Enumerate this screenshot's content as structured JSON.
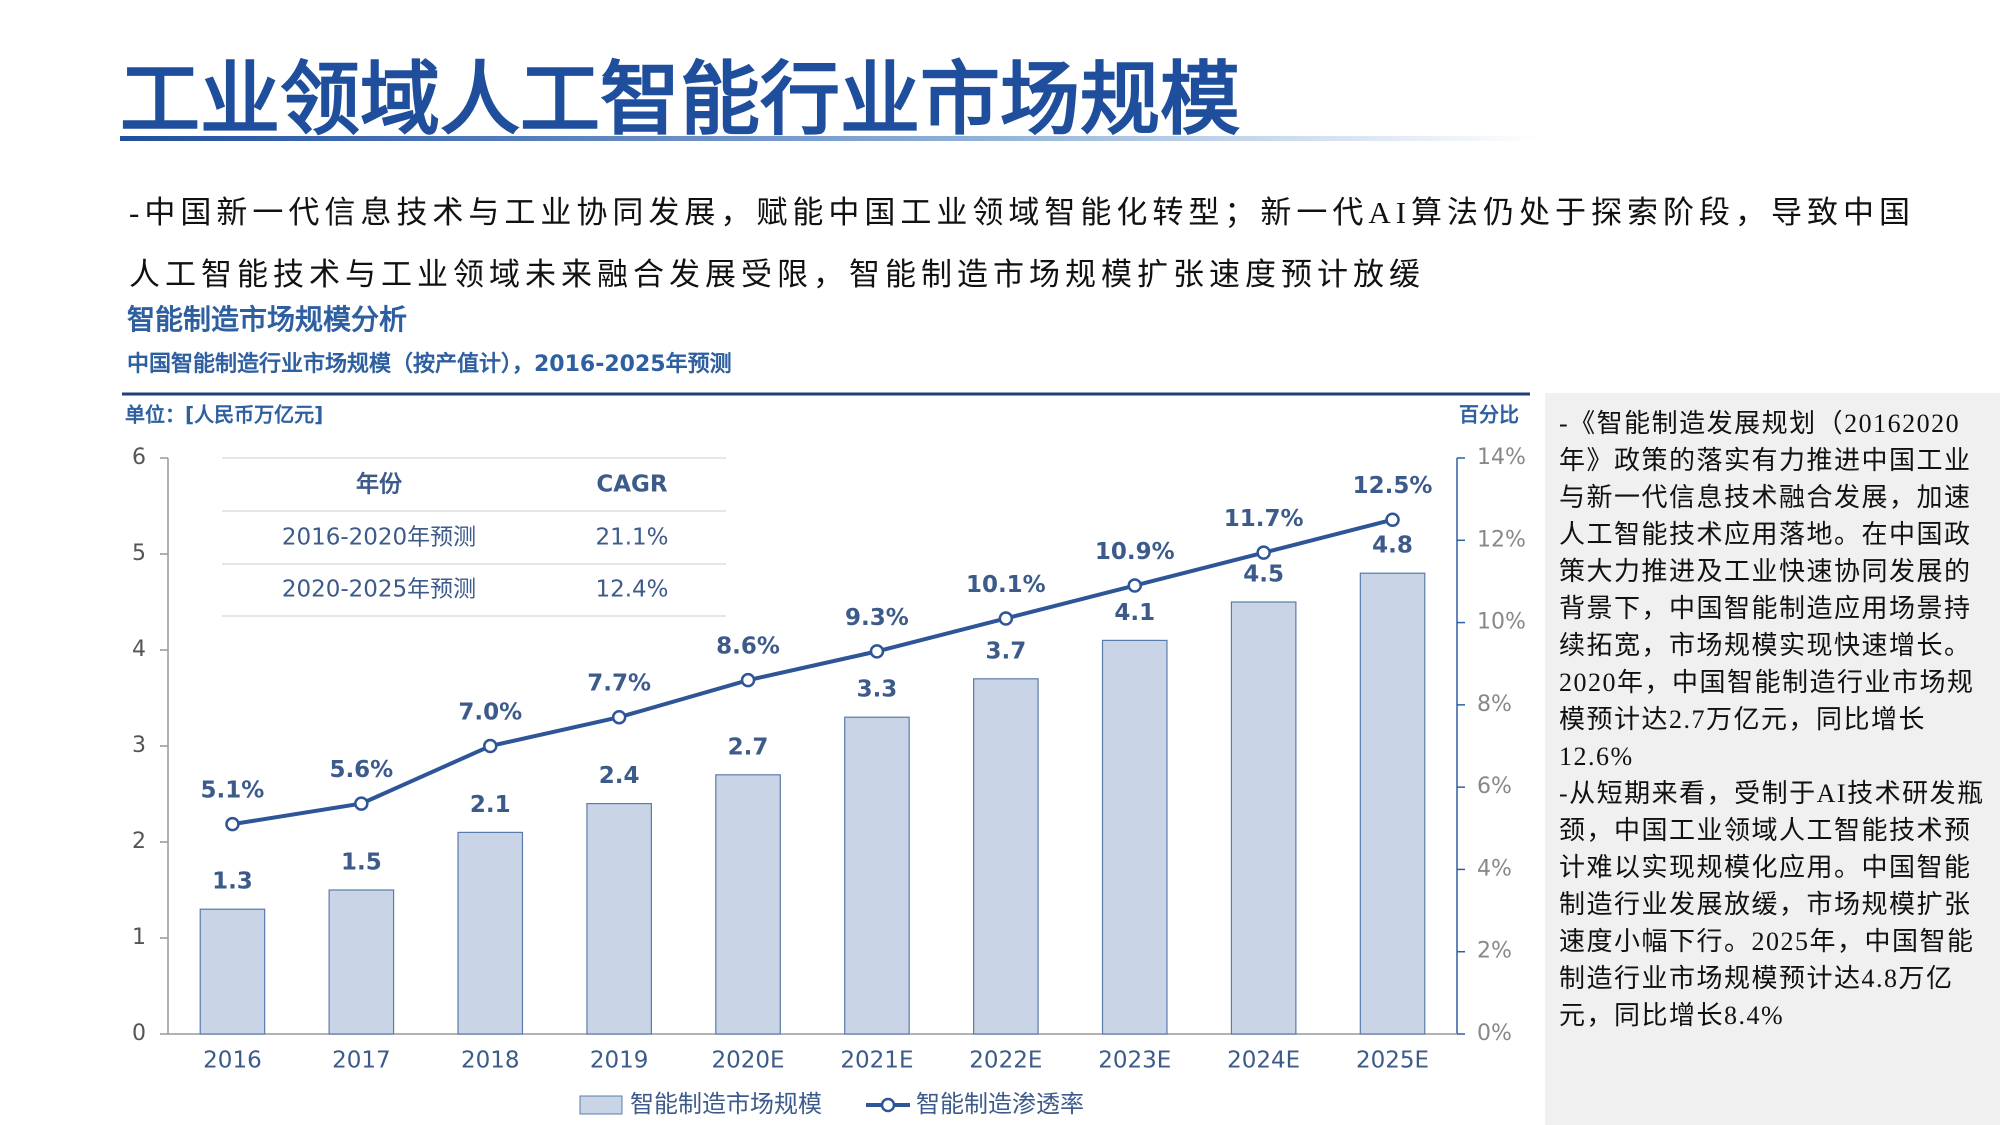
{
  "header": {
    "title": "工业领域人工智能行业市场规模"
  },
  "intro": "-中国新一代信息技术与工业协同发展，赋能中国工业领域智能化转型；新一代AI算法仍处于探索阶段，导致中国人工智能技术与工业领域未来融合发展受限，智能制造市场规模扩张速度预计放缓",
  "section_title": "智能制造市场规模分析",
  "cagr_table": {
    "headers": [
      "年份",
      "CAGR"
    ],
    "rows": [
      [
        "2016-2020年预测",
        "21.1%"
      ],
      [
        "2020-2025年预测",
        "12.4%"
      ]
    ]
  },
  "side_notes": [
    "-《智能制造发展规划（20162020年》政策的落实有力推进中国工业与新一代信息技术融合发展，加速人工智能技术应用落地。在中国政策大力推进及工业快速协同发展的背景下，中国智能制造应用场景持续拓宽，市场规模实现快速增长。2020年，中国智能制造行业市场规模预计达2.7万亿元，同比增长12.6%",
    "-从短期来看，受制于AI技术研发瓶颈，中国工业领域人工智能技术预计难以实现规模化应用。中国智能制造行业发展放缓，市场规模扩张速度小幅下行。2025年，中国智能制造行业市场规模预计达4.8万亿元，同比增长8.4%"
  ],
  "chart_data": {
    "type": "combo",
    "title": "中国智能制造行业市场规模（按产值计），2016-2025年预测",
    "y_label": "单位：[人民币万亿元]",
    "y2_label": "百分比",
    "categories": [
      "2016",
      "2017",
      "2018",
      "2019",
      "2020E",
      "2021E",
      "2022E",
      "2023E",
      "2024E",
      "2025E"
    ],
    "series": [
      {
        "name": "智能制造市场规模",
        "type": "bar",
        "color": "#c9d5e6",
        "values": [
          1.3,
          1.5,
          2.1,
          2.4,
          2.7,
          3.3,
          3.7,
          4.1,
          4.5,
          4.8
        ]
      },
      {
        "name": "智能制造渗透率",
        "type": "line",
        "axis": "y2",
        "color": "#2d5597",
        "values": [
          5.1,
          5.6,
          7.0,
          7.7,
          8.6,
          9.3,
          10.1,
          10.9,
          11.7,
          12.5
        ],
        "value_labels": [
          "5.1%",
          "5.6%",
          "7.0%",
          "7.7%",
          "8.6%",
          "9.3%",
          "10.1%",
          "10.9%",
          "11.7%",
          "12.5%"
        ]
      }
    ],
    "ylim": [
      0,
      6
    ],
    "yticks": [
      0,
      1,
      2,
      3,
      4,
      5,
      6
    ],
    "y2lim": [
      0,
      14
    ],
    "y2ticks": [
      {
        "value": 0,
        "label": "0%"
      },
      {
        "value": 2,
        "label": "2%"
      },
      {
        "value": 4,
        "label": "4%"
      },
      {
        "value": 6,
        "label": "6%"
      },
      {
        "value": 8,
        "label": "8%"
      },
      {
        "value": 10,
        "label": "10%"
      },
      {
        "value": 12,
        "label": "12%"
      },
      {
        "value": 14,
        "label": "14%"
      }
    ],
    "legend": "bottom"
  }
}
